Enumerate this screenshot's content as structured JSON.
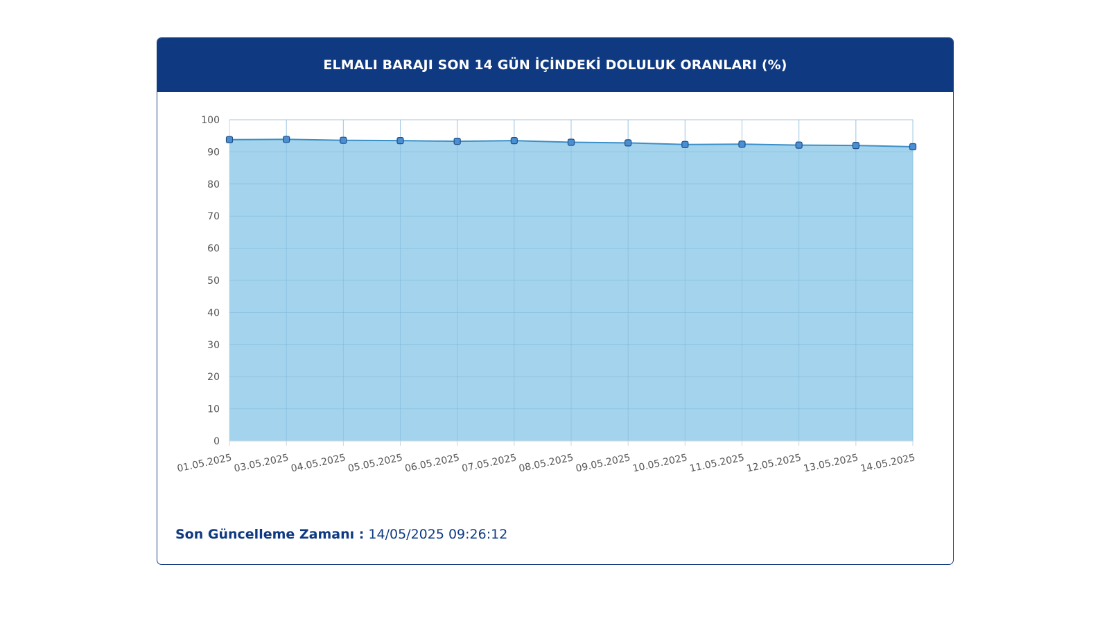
{
  "header": {
    "title": "ELMALI BARAJI SON 14 GÜN İÇİNDEKİ DOLULUK ORANLARI (%)"
  },
  "footer": {
    "label": "Son Güncelleme Zamanı :",
    "value": "14/05/2025 09:26:12"
  },
  "colors": {
    "header_bg": "#0f3a82",
    "area_fill": "#9cd0ec",
    "line": "#3c8fc6",
    "marker_fill": "#4a8fd4",
    "marker_stroke": "#1f4f86",
    "grid": "#c6dcea"
  },
  "chart_data": {
    "type": "area",
    "categories": [
      "01.05.2025",
      "03.05.2025",
      "04.05.2025",
      "05.05.2025",
      "06.05.2025",
      "07.05.2025",
      "08.05.2025",
      "09.05.2025",
      "10.05.2025",
      "11.05.2025",
      "12.05.2025",
      "13.05.2025",
      "14.05.2025"
    ],
    "values": [
      93.8,
      93.9,
      93.6,
      93.5,
      93.3,
      93.5,
      93.0,
      92.8,
      92.3,
      92.4,
      92.1,
      92.0,
      91.6
    ],
    "yticks": [
      0,
      10,
      20,
      30,
      40,
      50,
      60,
      70,
      80,
      90,
      100
    ],
    "ylim": [
      0,
      100
    ],
    "grid": true
  }
}
